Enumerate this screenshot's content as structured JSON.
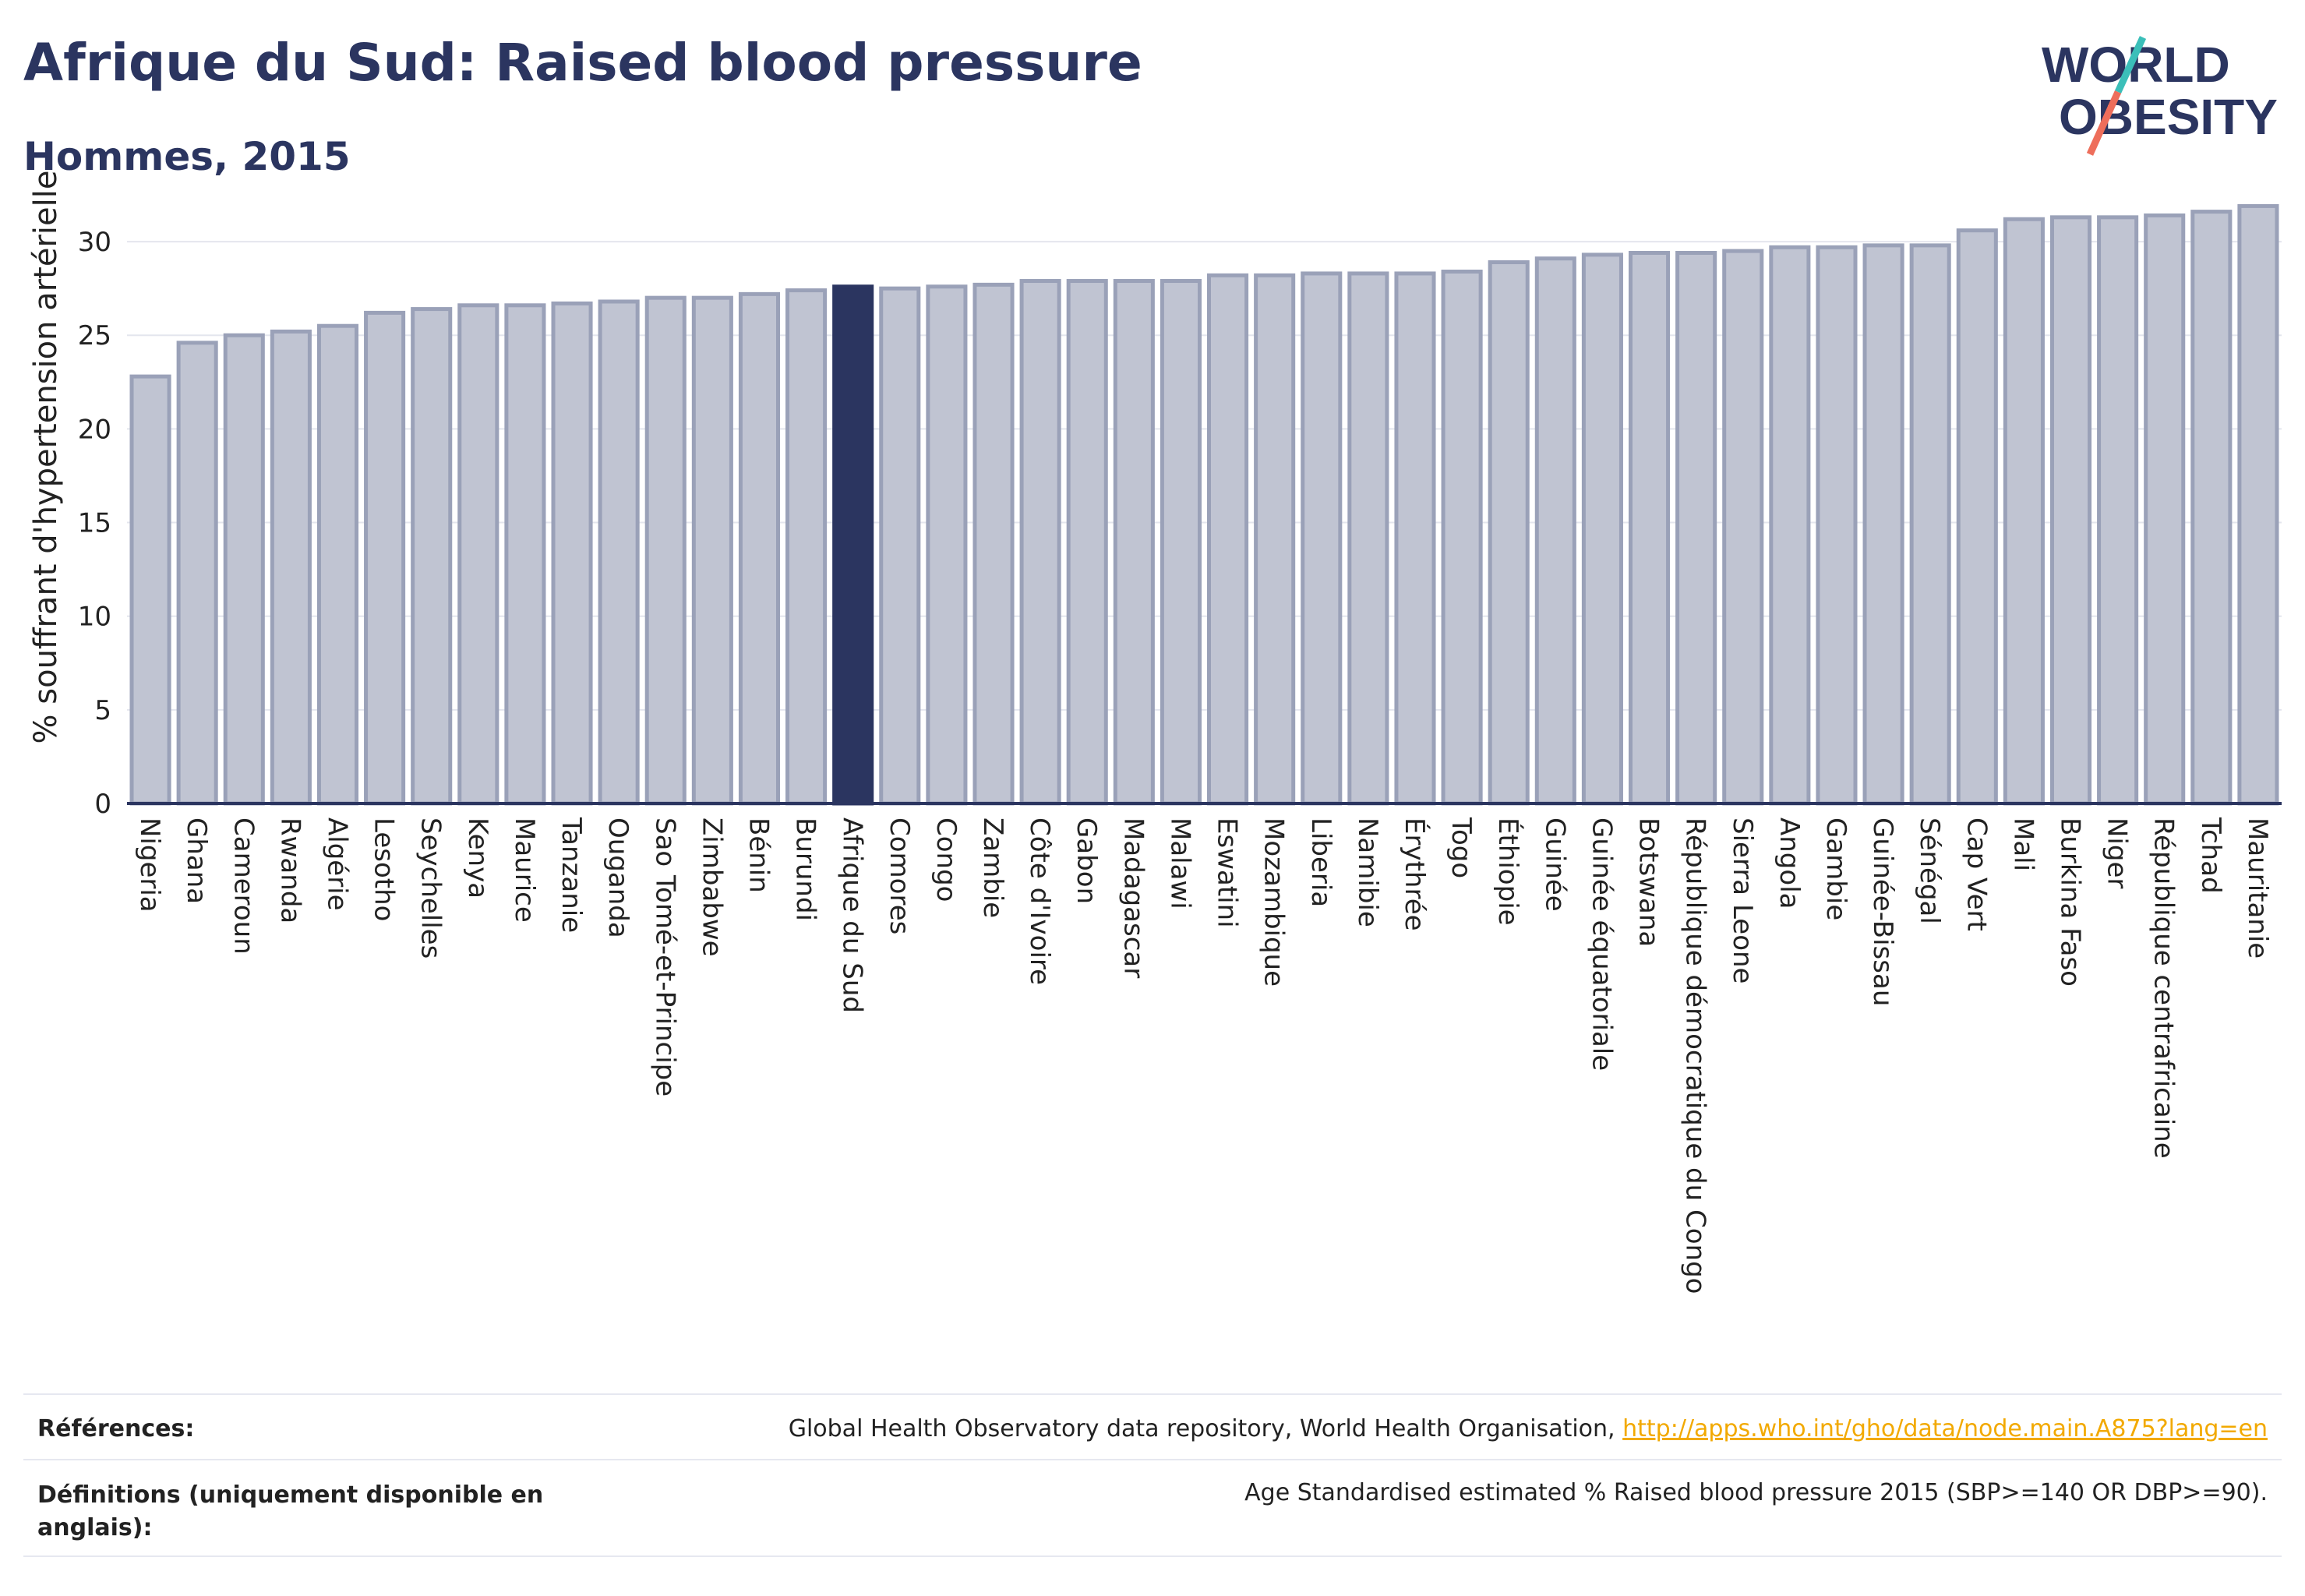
{
  "header": {
    "title": "Afrique du Sud: Raised blood pressure",
    "subtitle": "Hommes, 2015"
  },
  "logo": {
    "line1": "WORLD",
    "line2": "OBESITY",
    "colors": {
      "text": "#2b3560",
      "slash_teal": "#3bbfb9",
      "slash_coral": "#ee6e5b"
    }
  },
  "footer": {
    "references_label": "Références:",
    "references_text": "Global Health Observatory data repository, World Health Organisation,",
    "references_link": "http://apps.who.int/gho/data/node.main.A875?lang=en",
    "definitions_label": "Définitions (uniquement disponible en anglais):",
    "definitions_text": "Age Standardised estimated % Raised blood pressure 2015 (SBP>=140 OR DBP>=90)."
  },
  "chart_data": {
    "type": "bar",
    "title": "",
    "xlabel": "",
    "ylabel": "% souffrant d'hypertension artérielle",
    "ylim": [
      0,
      32
    ],
    "yticks": [
      0,
      5,
      10,
      15,
      20,
      25,
      30
    ],
    "grid": true,
    "highlight": "Afrique du Sud",
    "colors": {
      "bar": "#c0c4d2",
      "bar_edge": "#9aa1b8",
      "highlight": "#2b3560",
      "axis": "#2b3560",
      "grid": "#e4e6ee"
    },
    "categories": [
      "Nigeria",
      "Ghana",
      "Cameroun",
      "Rwanda",
      "Algérie",
      "Lesotho",
      "Seychelles",
      "Kenya",
      "Maurice",
      "Tanzanie",
      "Ouganda",
      "Sao Tomé-et-Principe",
      "Zimbabwe",
      "Bénin",
      "Burundi",
      "Afrique du Sud",
      "Comores",
      "Congo",
      "Zambie",
      "Côte d'Ivoire",
      "Gabon",
      "Madagascar",
      "Malawi",
      "Eswatini",
      "Mozambique",
      "Liberia",
      "Namibie",
      "Érythrée",
      "Togo",
      "Éthiopie",
      "Guinée",
      "Guinée équatoriale",
      "Botswana",
      "République démocratique du Congo",
      "Sierra Leone",
      "Angola",
      "Gambie",
      "Guinée-Bissau",
      "Sénégal",
      "Cap Vert",
      "Mali",
      "Burkina Faso",
      "Niger",
      "République centrafricaine",
      "Tchad",
      "Mauritanie"
    ],
    "values": [
      22.8,
      24.6,
      25.0,
      25.2,
      25.5,
      26.2,
      26.4,
      26.6,
      26.6,
      26.7,
      26.8,
      27.0,
      27.0,
      27.2,
      27.4,
      27.6,
      27.5,
      27.6,
      27.7,
      27.9,
      27.9,
      27.9,
      27.9,
      28.2,
      28.2,
      28.3,
      28.3,
      28.3,
      28.4,
      28.9,
      29.1,
      29.3,
      29.4,
      29.4,
      29.5,
      29.7,
      29.7,
      29.8,
      29.8,
      30.6,
      31.2,
      31.3,
      31.3,
      31.4,
      31.6,
      31.9
    ]
  }
}
